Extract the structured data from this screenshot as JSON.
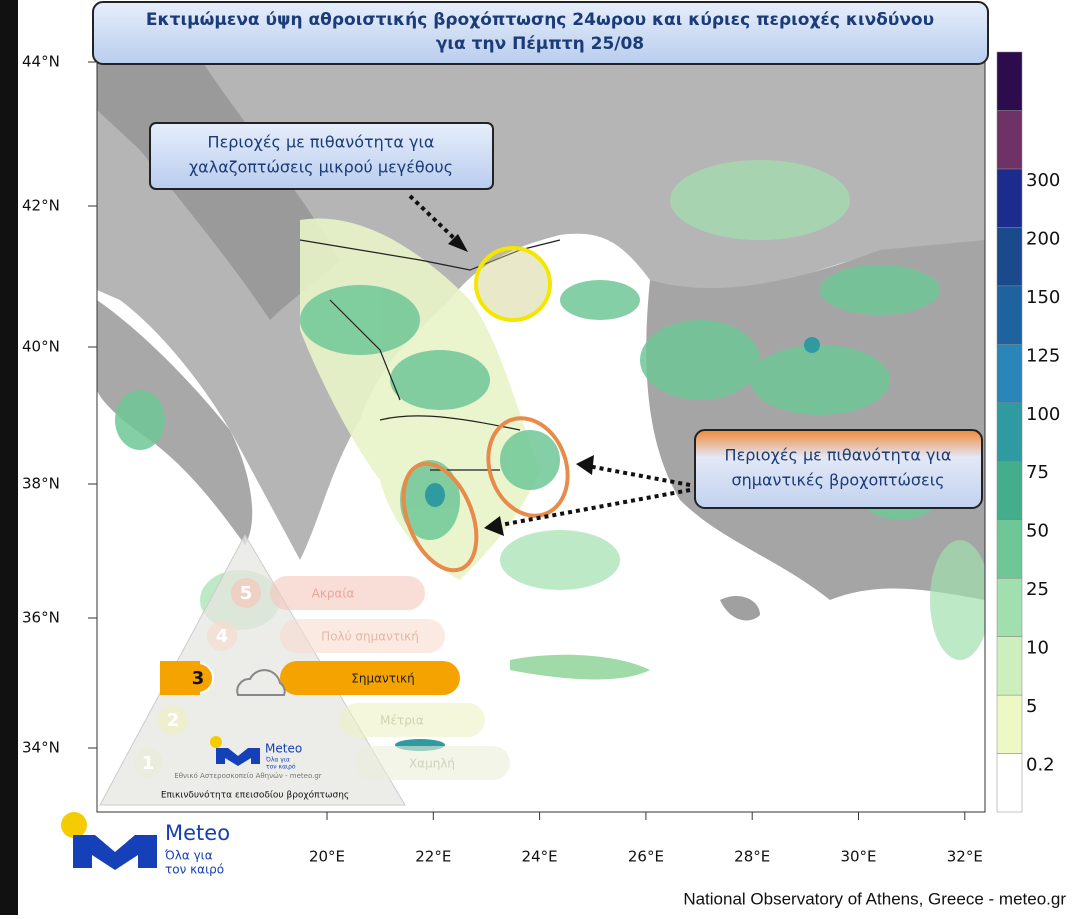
{
  "header": {
    "title": [
      "Εκτιμώμενα ύψη αθροιστικής βροχόπτωσης 24ωρου και κύριες περιοχές κινδύνου",
      "για την Πέμπτη 25/08"
    ]
  },
  "callouts": [
    {
      "lines": [
        "Περιοχές με πιθανότητα για",
        "χαλαζοπτώσεις μικρού μεγέθους"
      ]
    },
    {
      "lines": [
        "Περιοχές με πιθανότητα για",
        "σημαντικές βροχοπτώσεις"
      ]
    }
  ],
  "map": {
    "lat_labels": [
      "44°N",
      "42°N",
      "40°N",
      "38°N",
      "36°N",
      "34°N"
    ],
    "lon_labels": [
      "20°E",
      "22°E",
      "24°E",
      "26°E",
      "28°E",
      "30°E",
      "32°E"
    ]
  },
  "colorbar": {
    "levels": [
      0.2,
      5,
      10,
      25,
      50,
      75,
      100,
      125,
      150,
      200,
      300
    ],
    "colors": [
      "#ffffff",
      "#eef8c4",
      "#cdeebd",
      "#a2dfae",
      "#6fc797",
      "#43ad8c",
      "#2f9aa0",
      "#2a86b8",
      "#1e62a0",
      "#1a4a8c",
      "#1c2c8c",
      "#6e3266",
      "#2c0c4c"
    ]
  },
  "risk_scale": {
    "levels": [
      {
        "number": 5,
        "label": "Ακραία"
      },
      {
        "number": 4,
        "label": "Πολύ σημαντική"
      },
      {
        "number": 3,
        "label": "Σημαντική"
      },
      {
        "number": 2,
        "label": "Μέτρια"
      },
      {
        "number": 1,
        "label": "Χαμηλή"
      }
    ],
    "logo": "Meteo",
    "slogan": [
      "Όλα για",
      "τον καιρό"
    ],
    "credit": "Εθνικό Αστεροσκοπείο Αθηνών - meteo.gr",
    "caption": "Επικινδυνότητα επεισοδίου βροχόπτωσης"
  },
  "logo": {
    "name": "Meteo",
    "slogan": [
      "Όλα για",
      "τον καιρό"
    ]
  },
  "footer": "National Observatory of Athens, Greece - meteo.gr"
}
